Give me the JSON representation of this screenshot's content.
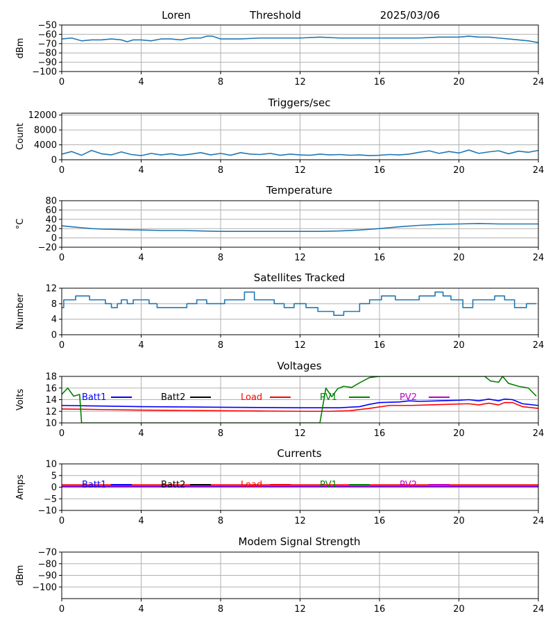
{
  "header": {
    "station": "Loren",
    "mode": "Threshold",
    "date": "2025/03/06"
  },
  "chart_data": [
    {
      "id": "signal",
      "type": "line",
      "title": "",
      "ylabel": "dBm",
      "xlim": [
        0,
        24
      ],
      "ylim": [
        -100,
        -50
      ],
      "xticks": [
        0,
        4,
        8,
        12,
        16,
        20,
        24
      ],
      "yticks": [
        -100,
        -90,
        -80,
        -70,
        -60,
        -50
      ],
      "grid": true,
      "series": [
        {
          "color": "#1f77b4",
          "x": [
            0,
            0.5,
            1,
            1.5,
            2,
            2.5,
            3,
            3.3,
            3.6,
            4,
            4.5,
            5,
            5.5,
            6,
            6.5,
            7,
            7.3,
            7.6,
            8,
            8.5,
            9,
            10,
            11,
            12,
            13,
            14,
            15,
            16,
            17,
            18,
            19,
            20,
            20.5,
            21,
            21.5,
            22,
            22.5,
            23,
            23.5,
            24
          ],
          "values": [
            -65,
            -64,
            -67,
            -66,
            -66,
            -65,
            -66,
            -68,
            -66,
            -66,
            -67,
            -65,
            -65,
            -66,
            -64,
            -64,
            -62,
            -62,
            -65,
            -65,
            -65,
            -64,
            -64,
            -64,
            -63,
            -64,
            -64,
            -64,
            -64,
            -64,
            -63,
            -63,
            -62,
            -63,
            -63,
            -64,
            -65,
            -66,
            -67,
            -69
          ]
        }
      ]
    },
    {
      "id": "triggers",
      "type": "line",
      "title": "Triggers/sec",
      "ylabel": "Count",
      "xlim": [
        0,
        24
      ],
      "ylim": [
        0,
        12500
      ],
      "xticks": [
        0,
        4,
        8,
        12,
        16,
        20,
        24
      ],
      "yticks": [
        0,
        4000,
        8000,
        12000
      ],
      "grid": true,
      "series": [
        {
          "color": "#1f77b4",
          "x": [
            0,
            0.5,
            1,
            1.5,
            2,
            2.5,
            3,
            3.5,
            4,
            4.5,
            5,
            5.5,
            6,
            6.5,
            7,
            7.5,
            8,
            8.5,
            9,
            9.5,
            10,
            10.5,
            11,
            11.5,
            12,
            12.5,
            13,
            13.5,
            14,
            14.5,
            15,
            15.5,
            16,
            16.5,
            17,
            17.5,
            18,
            18.5,
            19,
            19.5,
            20,
            20.5,
            21,
            21.5,
            22,
            22.5,
            23,
            23.5,
            24
          ],
          "values": [
            1500,
            2200,
            1200,
            2500,
            1600,
            1300,
            2100,
            1400,
            1100,
            1700,
            1300,
            1600,
            1200,
            1500,
            1900,
            1300,
            1700,
            1200,
            1900,
            1500,
            1400,
            1700,
            1200,
            1500,
            1300,
            1200,
            1500,
            1300,
            1400,
            1200,
            1300,
            1100,
            1200,
            1400,
            1300,
            1500,
            2000,
            2400,
            1700,
            2200,
            1800,
            2600,
            1700,
            2100,
            2400,
            1600,
            2300,
            2000,
            2500
          ]
        }
      ]
    },
    {
      "id": "temperature",
      "type": "line",
      "title": "Temperature",
      "ylabel": "°C",
      "xlim": [
        0,
        24
      ],
      "ylim": [
        -20,
        80
      ],
      "xticks": [
        0,
        4,
        8,
        12,
        16,
        20,
        24
      ],
      "yticks": [
        -20,
        0,
        20,
        40,
        60,
        80
      ],
      "grid": true,
      "series": [
        {
          "color": "#1f77b4",
          "x": [
            0,
            0.5,
            1,
            1.5,
            2,
            3,
            4,
            5,
            6,
            7,
            8,
            9,
            10,
            11,
            12,
            13,
            14,
            15,
            16,
            17,
            18,
            19,
            20,
            21,
            22,
            23,
            24
          ],
          "values": [
            26,
            24,
            22,
            20,
            19,
            18,
            17,
            16,
            16,
            15,
            14,
            14,
            14,
            14,
            14,
            14,
            15,
            17,
            20,
            24,
            27,
            29,
            30,
            31,
            30,
            30,
            30
          ]
        }
      ]
    },
    {
      "id": "satellites",
      "type": "line",
      "title": "Satellites Tracked",
      "ylabel": "Number",
      "xlim": [
        0,
        24
      ],
      "ylim": [
        0,
        12
      ],
      "xticks": [
        0,
        4,
        8,
        12,
        16,
        20,
        24
      ],
      "yticks": [
        0,
        4,
        8,
        12
      ],
      "grid": true,
      "step": true,
      "series": [
        {
          "color": "#1f77b4",
          "x": [
            0,
            0.1,
            0.7,
            1.4,
            1.8,
            2.2,
            2.5,
            2.8,
            3,
            3.3,
            3.6,
            4,
            4.4,
            4.8,
            5.3,
            5.8,
            6.3,
            6.8,
            7.3,
            7.6,
            8.2,
            8.6,
            9.2,
            9.7,
            10.2,
            10.7,
            11.2,
            11.7,
            12.3,
            12.9,
            13.4,
            13.7,
            14.2,
            15,
            15.5,
            16.1,
            16.8,
            17.5,
            18,
            18.4,
            18.8,
            19.2,
            19.6,
            20.2,
            20.7,
            21.3,
            21.8,
            22.3,
            22.8,
            23.4,
            23.9
          ],
          "values": [
            7,
            9,
            10,
            9,
            9,
            8,
            7,
            8,
            9,
            8,
            9,
            9,
            8,
            7,
            7,
            7,
            8,
            9,
            8,
            8,
            9,
            9,
            11,
            9,
            9,
            8,
            7,
            8,
            7,
            6,
            6,
            5,
            6,
            8,
            9,
            10,
            9,
            9,
            10,
            10,
            11,
            10,
            9,
            7,
            9,
            9,
            10,
            9,
            7,
            8,
            8
          ]
        }
      ]
    },
    {
      "id": "voltages",
      "type": "line",
      "title": "Voltages",
      "ylabel": "Volts",
      "xlim": [
        0,
        24
      ],
      "ylim": [
        10,
        18
      ],
      "xticks": [
        0,
        4,
        8,
        12,
        16,
        20,
        24
      ],
      "yticks": [
        10,
        12,
        14,
        16,
        18
      ],
      "grid": true,
      "legend_location": "top",
      "series": [
        {
          "name": "Batt1",
          "color": "#0000ff",
          "x": [
            0,
            2,
            4,
            6,
            8,
            10,
            12,
            14,
            15,
            15.5,
            16,
            17,
            17.5,
            18,
            19,
            20,
            20.5,
            21,
            21.5,
            22,
            22.3,
            22.7,
            23.2,
            24
          ],
          "values": [
            13.0,
            12.9,
            12.8,
            12.75,
            12.7,
            12.65,
            12.6,
            12.6,
            12.8,
            13.2,
            13.5,
            13.6,
            13.8,
            13.7,
            13.8,
            13.9,
            14.0,
            13.8,
            14.1,
            13.8,
            14.1,
            14.0,
            13.3,
            13.0
          ]
        },
        {
          "name": "Batt2",
          "color": "#000000",
          "x": [],
          "values": []
        },
        {
          "name": "Load",
          "color": "#ff0000",
          "x": [
            0,
            2,
            4,
            6,
            8,
            10,
            12,
            13.5,
            14.5,
            15.5,
            16.5,
            17.5,
            18.5,
            19.5,
            20.5,
            21,
            21.5,
            22,
            22.3,
            22.7,
            23.2,
            24
          ],
          "values": [
            12.4,
            12.3,
            12.2,
            12.15,
            12.1,
            12.05,
            12.0,
            12.0,
            12.1,
            12.5,
            13.0,
            13.0,
            13.1,
            13.2,
            13.3,
            13.1,
            13.4,
            13.1,
            13.5,
            13.5,
            12.8,
            12.5
          ]
        },
        {
          "name": "PV1",
          "color": "#008000",
          "x": [
            0,
            0.3,
            0.6,
            0.9,
            1.0,
            13.0,
            13.3,
            13.6,
            13.9,
            14.2,
            14.6,
            15.0,
            15.5,
            16.0,
            21.0,
            21.3,
            21.6,
            22.0,
            22.2,
            22.5,
            23.0,
            23.5,
            23.9
          ],
          "values": [
            14.9,
            16.0,
            14.6,
            14.9,
            10.0,
            10.0,
            16.0,
            14.5,
            15.9,
            16.3,
            16.1,
            16.9,
            17.8,
            18.0,
            18.0,
            18.0,
            17.2,
            17.0,
            18.0,
            16.8,
            16.3,
            16.0,
            14.6
          ]
        },
        {
          "name": "PV2",
          "color": "#bf00bf",
          "x": [],
          "values": []
        }
      ]
    },
    {
      "id": "currents",
      "type": "line",
      "title": "Currents",
      "ylabel": "Amps",
      "xlim": [
        0,
        24
      ],
      "ylim": [
        -10,
        10
      ],
      "xticks": [
        0,
        4,
        8,
        12,
        16,
        20,
        24
      ],
      "yticks": [
        -10,
        -5,
        0,
        5,
        10
      ],
      "grid": true,
      "legend_location": "top",
      "series": [
        {
          "name": "Batt1",
          "color": "#0000ff",
          "x": [
            0,
            24
          ],
          "values": [
            0.4,
            0.4
          ]
        },
        {
          "name": "Batt2",
          "color": "#000000",
          "x": [],
          "values": []
        },
        {
          "name": "Load",
          "color": "#ff0000",
          "x": [
            0,
            24
          ],
          "values": [
            1.0,
            1.0
          ]
        },
        {
          "name": "PV1",
          "color": "#008000",
          "x": [],
          "values": []
        },
        {
          "name": "PV2",
          "color": "#bf00bf",
          "x": [
            0,
            24
          ],
          "values": [
            0.1,
            0.1
          ]
        }
      ]
    },
    {
      "id": "modem",
      "type": "line",
      "title": "Modem Signal Strength",
      "ylabel": "dBm",
      "xlim": [
        0,
        24
      ],
      "ylim": [
        -110,
        -70
      ],
      "xticks": [
        0,
        4,
        8,
        12,
        16,
        20,
        24
      ],
      "yticks": [
        -100,
        -90,
        -80,
        -70
      ],
      "grid": true,
      "series": []
    }
  ]
}
